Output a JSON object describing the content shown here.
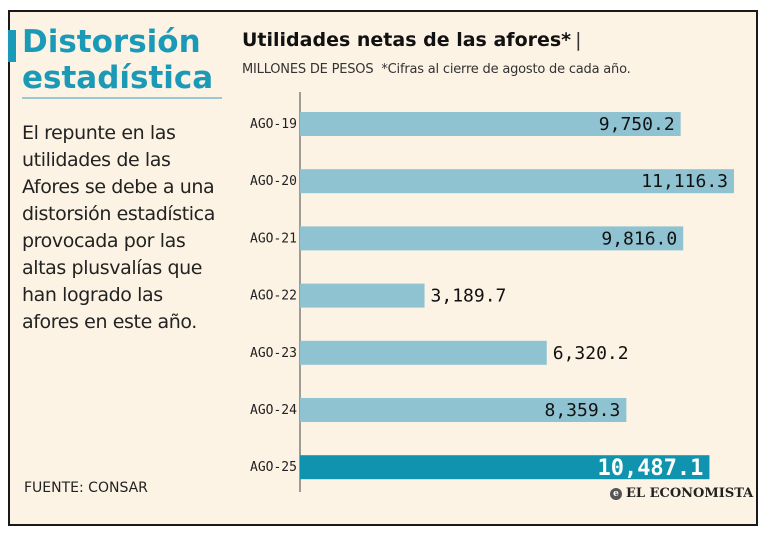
{
  "headline": {
    "lines": [
      "Distorsión",
      "estadística"
    ]
  },
  "description": {
    "lines": [
      " El repunte en las",
      "utilidades de las",
      "Afores se debe a una",
      "distorsión estadística",
      "provocada por las",
      "altas plusvalías que",
      "han logrado las",
      "afores en este año."
    ]
  },
  "source": "FUENTE: CONSAR",
  "brand": "EL ECONOMISTA",
  "colors": {
    "accent": "#1b9ab8",
    "bar": "#8fc3d2",
    "bar_highlight": "#0f93ae",
    "background": "#fcf3e4"
  },
  "chart_data": {
    "type": "bar",
    "orientation": "horizontal",
    "title": "Utilidades netas de las afores*",
    "title_suffix": "|",
    "unit_label": "MILLONES DE PESOS",
    "note": "*Cifras al cierre de agosto de cada año.",
    "categories": [
      "AGO-19",
      "AGO-20",
      "AGO-21",
      "AGO-22",
      "AGO-23",
      "AGO-24",
      "AGO-25"
    ],
    "values": [
      9750.2,
      11116.3,
      9816.0,
      3189.7,
      6320.2,
      8359.3,
      10487.1
    ],
    "value_labels": [
      "9,750.2",
      "11,116.3",
      "9,816.0",
      "3,189.7",
      "6,320.2",
      "8,359.3",
      "10,487.1"
    ],
    "highlight_index": 6,
    "xlim": [
      0,
      11116.3
    ]
  }
}
